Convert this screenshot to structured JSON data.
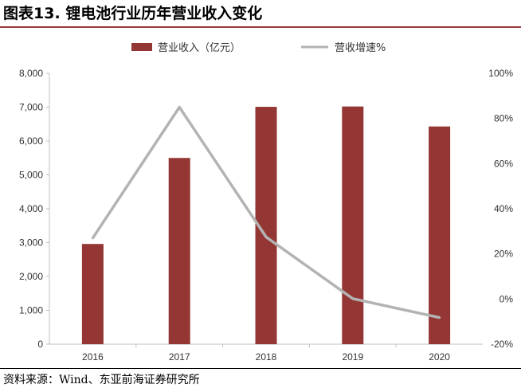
{
  "title": "图表13. 锂电池行业历年营业收入变化",
  "source": "资料来源：Wind、东亚前海证券研究所",
  "colors": {
    "bar": "#943634",
    "line": "#b3b3b3",
    "title_rule": "#9b3a3a"
  },
  "chart_data": {
    "type": "bar",
    "categories": [
      "2016",
      "2017",
      "2018",
      "2019",
      "2020"
    ],
    "series": [
      {
        "name": "营业收入（亿元）",
        "type": "bar",
        "axis": "left",
        "values": [
          2960,
          5500,
          7010,
          7020,
          6430
        ]
      },
      {
        "name": "营收增速%",
        "type": "line",
        "axis": "right",
        "values": [
          27,
          85,
          27.5,
          0.2,
          -8.2
        ]
      }
    ],
    "y_left": {
      "min": 0,
      "max": 8000,
      "ticks": [
        "0",
        "1,000",
        "2,000",
        "3,000",
        "4,000",
        "5,000",
        "6,000",
        "7,000",
        "8,000"
      ]
    },
    "y_right": {
      "min": -20,
      "max": 100,
      "ticks": [
        "-20%",
        "0%",
        "20%",
        "40%",
        "60%",
        "80%",
        "100%"
      ]
    },
    "legend_position": "top-center",
    "grid": false
  }
}
